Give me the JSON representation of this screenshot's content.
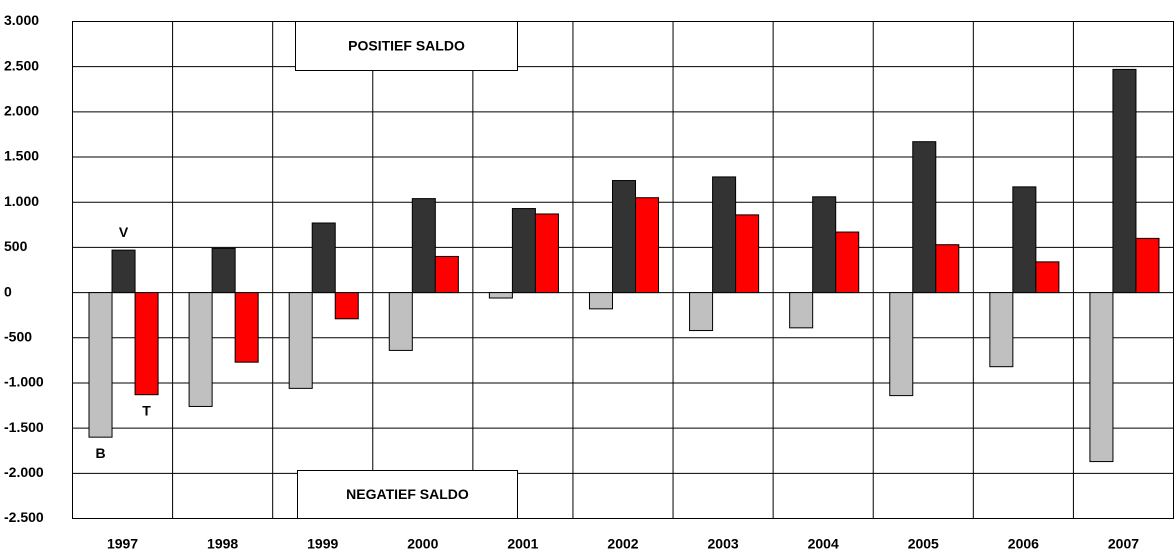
{
  "chart_data": {
    "type": "bar",
    "categories": [
      "1997",
      "1998",
      "1999",
      "2000",
      "2001",
      "2002",
      "2003",
      "2004",
      "2005",
      "2006",
      "2007"
    ],
    "series": [
      {
        "name": "B",
        "color": "#c0c0c0",
        "values": [
          -1600,
          -1260,
          -1060,
          -640,
          -60,
          -180,
          -420,
          -390,
          -1140,
          -820,
          -1870
        ]
      },
      {
        "name": "V",
        "color": "#333333",
        "values": [
          470,
          490,
          770,
          1040,
          930,
          1240,
          1280,
          1060,
          1670,
          1170,
          2470
        ]
      },
      {
        "name": "T",
        "color": "#ff0000",
        "values": [
          -1130,
          -770,
          -290,
          400,
          870,
          1050,
          860,
          670,
          530,
          340,
          600
        ]
      }
    ],
    "annotations": [
      "POSITIEF SALDO",
      "NEGATIEF SALDO"
    ],
    "ylim": [
      -2500,
      3000
    ],
    "yticks": [
      {
        "value": -2500,
        "label": "-2.500"
      },
      {
        "value": -2000,
        "label": "-2.000"
      },
      {
        "value": -1500,
        "label": "-1.500"
      },
      {
        "value": -1000,
        "label": "-1.000"
      },
      -500,
      0,
      500,
      {
        "value": 1000,
        "label": "1.000"
      },
      {
        "value": 1500,
        "label": "1.500"
      },
      {
        "value": 2000,
        "label": "2.000"
      },
      {
        "value": 2500,
        "label": "2.500"
      },
      {
        "value": 3000,
        "label": "3.000"
      }
    ],
    "grid": true
  }
}
